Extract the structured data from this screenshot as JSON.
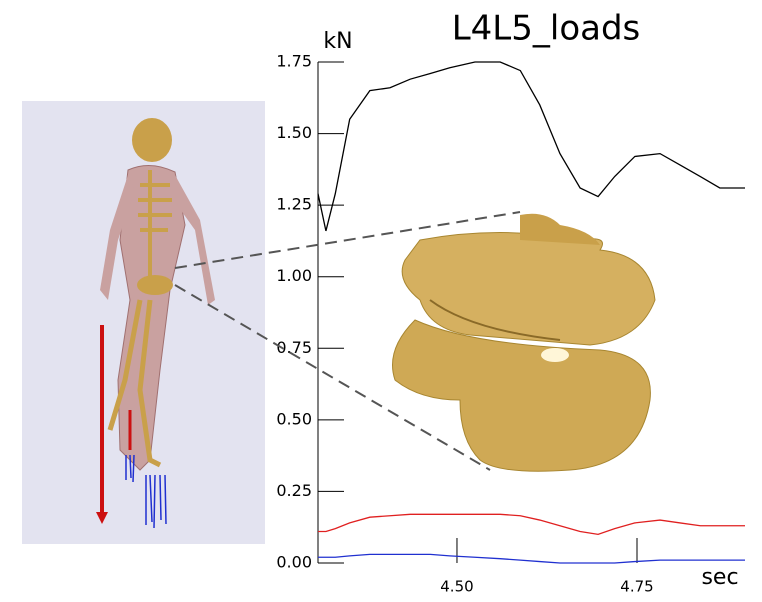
{
  "chart_data": {
    "type": "line",
    "title": "L4L5_loads",
    "y_label": "kN",
    "x_label": "sec",
    "x": [
      4.307,
      4.318,
      4.331,
      4.351,
      4.379,
      4.407,
      4.435,
      4.463,
      4.49,
      4.525,
      4.56,
      4.588,
      4.615,
      4.643,
      4.671,
      4.696,
      4.719,
      4.747,
      4.782,
      4.81,
      4.838,
      4.865,
      4.9
    ],
    "series": [
      {
        "color": "#000000",
        "values": [
          1.29,
          1.16,
          1.29,
          1.55,
          1.65,
          1.66,
          1.69,
          1.71,
          1.73,
          1.75,
          1.75,
          1.72,
          1.6,
          1.43,
          1.31,
          1.28,
          1.35,
          1.42,
          1.43,
          1.39,
          1.35,
          1.31,
          1.31
        ]
      },
      {
        "color": "#e02020",
        "values": [
          0.11,
          0.11,
          0.12,
          0.14,
          0.16,
          0.165,
          0.17,
          0.17,
          0.17,
          0.17,
          0.17,
          0.165,
          0.15,
          0.13,
          0.11,
          0.1,
          0.12,
          0.14,
          0.15,
          0.14,
          0.13,
          0.13,
          0.13
        ]
      },
      {
        "color": "#2030d0",
        "values": [
          0.02,
          0.02,
          0.02,
          0.025,
          0.03,
          0.03,
          0.03,
          0.03,
          0.025,
          0.02,
          0.015,
          0.01,
          0.005,
          0,
          0,
          0,
          0,
          0.005,
          0.01,
          0.01,
          0.01,
          0.01,
          0.01
        ]
      }
    ],
    "xlim": [
      4.307,
      4.9
    ],
    "xticks": [
      {
        "value": 4.5,
        "label": "4.50"
      },
      {
        "value": 4.75,
        "label": "4.75"
      }
    ],
    "ylim": [
      0,
      1.75
    ],
    "yticks": [
      {
        "value": 0,
        "label": "0.00"
      },
      0.25,
      {
        "value": 0.5,
        "label": "0.50"
      },
      0.75,
      {
        "value": 1,
        "label": "1.00"
      },
      1.25,
      {
        "value": 1.5,
        "label": "1.50"
      },
      1.75
    ]
  }
}
